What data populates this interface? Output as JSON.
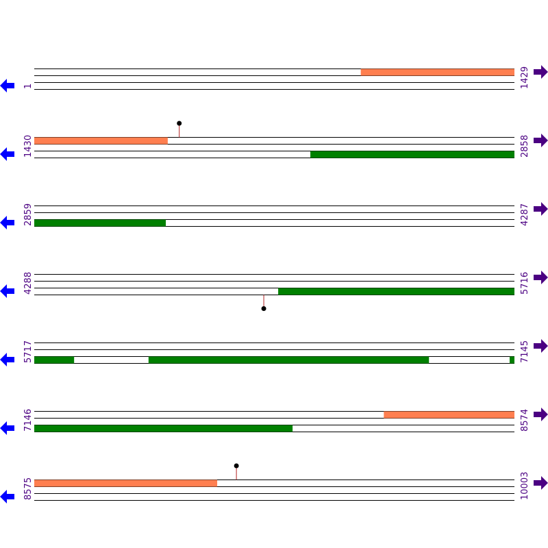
{
  "colors": {
    "orange_feature": "#ff7f50",
    "green_feature": "#008000",
    "line": "#000000",
    "marker_stem": "#b22222",
    "marker_dot": "#000000",
    "left_arrow": "#0000ff",
    "right_arrow": "#4b0082",
    "coord_label": "#4b0082"
  },
  "rows": [
    {
      "start": "1",
      "end": "1429",
      "features": [
        {
          "track": 0,
          "from": 0.68,
          "to": 1.0,
          "color": "orange"
        }
      ],
      "markers": []
    },
    {
      "start": "1430",
      "end": "2858",
      "features": [
        {
          "track": 0,
          "from": 0.0,
          "to": 0.278,
          "color": "orange"
        },
        {
          "track": 2,
          "from": 0.575,
          "to": 1.0,
          "color": "green"
        }
      ],
      "markers": [
        {
          "pos": 0.302,
          "side": "above"
        }
      ]
    },
    {
      "start": "2859",
      "end": "4287",
      "features": [
        {
          "track": 2,
          "from": 0.0,
          "to": 0.274,
          "color": "green"
        }
      ],
      "markers": []
    },
    {
      "start": "4288",
      "end": "5716",
      "features": [
        {
          "track": 2,
          "from": 0.508,
          "to": 1.0,
          "color": "green"
        }
      ],
      "markers": [
        {
          "pos": 0.478,
          "side": "below"
        }
      ]
    },
    {
      "start": "5717",
      "end": "7145",
      "features": [
        {
          "track": 2,
          "from": 0.0,
          "to": 0.083,
          "color": "green"
        },
        {
          "track": 2,
          "from": 0.238,
          "to": 0.822,
          "color": "green"
        },
        {
          "track": 2,
          "from": 0.99,
          "to": 1.0,
          "color": "green"
        }
      ],
      "markers": []
    },
    {
      "start": "7146",
      "end": "8574",
      "features": [
        {
          "track": 0,
          "from": 0.728,
          "to": 1.0,
          "color": "orange"
        },
        {
          "track": 2,
          "from": 0.0,
          "to": 0.538,
          "color": "green"
        }
      ],
      "markers": []
    },
    {
      "start": "8575",
      "end": "10003",
      "features": [
        {
          "track": 0,
          "from": 0.0,
          "to": 0.381,
          "color": "orange"
        }
      ],
      "markers": [
        {
          "pos": 0.421,
          "side": "above"
        }
      ]
    }
  ]
}
